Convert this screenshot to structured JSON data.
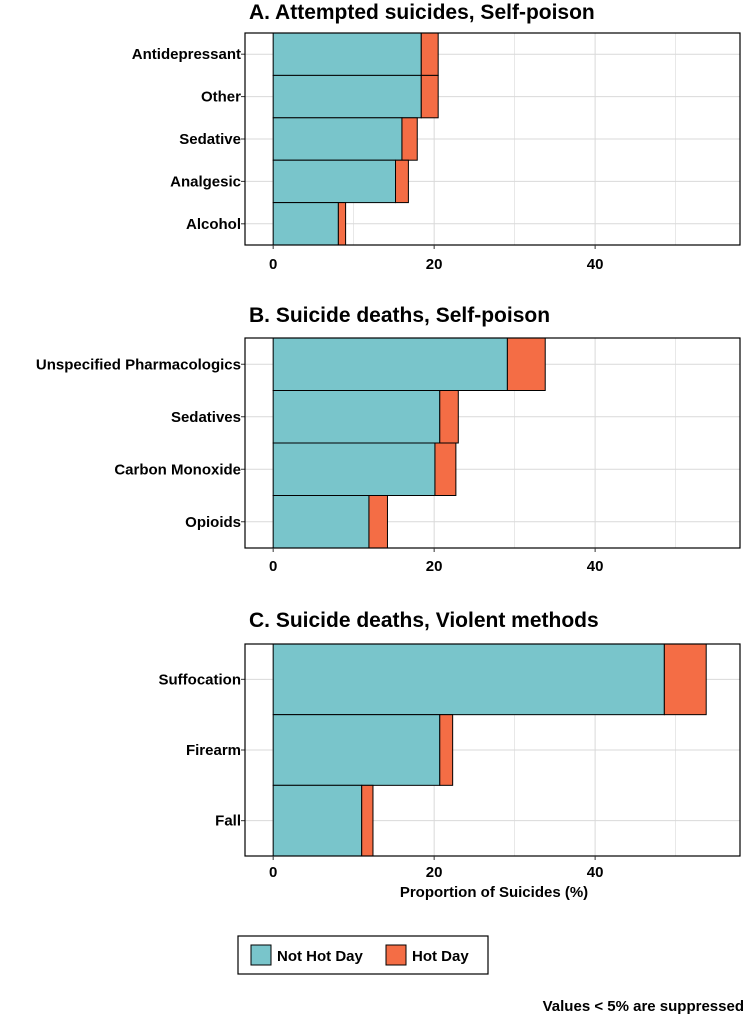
{
  "colors": {
    "not_hot": "#79C5CB",
    "hot": "#F46D45",
    "grid": "#d9d9d9",
    "border": "#000000"
  },
  "chart_data": [
    {
      "type": "bar",
      "orientation": "horizontal",
      "stacked": true,
      "title": "A. Attempted suicides, Self-poison",
      "categories": [
        "Antidepressant",
        "Other",
        "Sedative",
        "Analgesic",
        "Alcohol"
      ],
      "series": [
        {
          "name": "Not Hot Day",
          "values": [
            18.4,
            18.4,
            16.0,
            15.2,
            8.1
          ]
        },
        {
          "name": "Hot Day",
          "values": [
            2.1,
            2.1,
            1.9,
            1.6,
            0.9
          ]
        }
      ],
      "xlim": [
        -3.5,
        58
      ],
      "xticks": [
        0,
        20,
        40
      ],
      "grid": true,
      "xlabel": ""
    },
    {
      "type": "bar",
      "orientation": "horizontal",
      "stacked": true,
      "title": "B. Suicide deaths, Self-poison",
      "categories": [
        "Unspecified Pharmacologics",
        "Sedatives",
        "Carbon Monoxide",
        "Opioids"
      ],
      "series": [
        {
          "name": "Not Hot Day",
          "values": [
            29.1,
            20.7,
            20.1,
            11.9
          ]
        },
        {
          "name": "Hot Day",
          "values": [
            4.7,
            2.3,
            2.6,
            2.3
          ]
        }
      ],
      "xlim": [
        -3.5,
        58
      ],
      "xticks": [
        0,
        20,
        40
      ],
      "grid": true,
      "xlabel": ""
    },
    {
      "type": "bar",
      "orientation": "horizontal",
      "stacked": true,
      "title": "C. Suicide deaths, Violent methods",
      "categories": [
        "Suffocation",
        "Firearm",
        "Fall"
      ],
      "series": [
        {
          "name": "Not Hot Day",
          "values": [
            48.6,
            20.7,
            11.0
          ]
        },
        {
          "name": "Hot Day",
          "values": [
            5.2,
            1.6,
            1.4
          ]
        }
      ],
      "xlim": [
        -3.5,
        58
      ],
      "xticks": [
        0,
        20,
        40
      ],
      "grid": true,
      "xlabel": "Proportion of Suicides (%)"
    }
  ],
  "legend": {
    "position": "bottom",
    "items": [
      "Not Hot Day",
      "Hot Day"
    ]
  },
  "note": "Values < 5% are suppressed"
}
